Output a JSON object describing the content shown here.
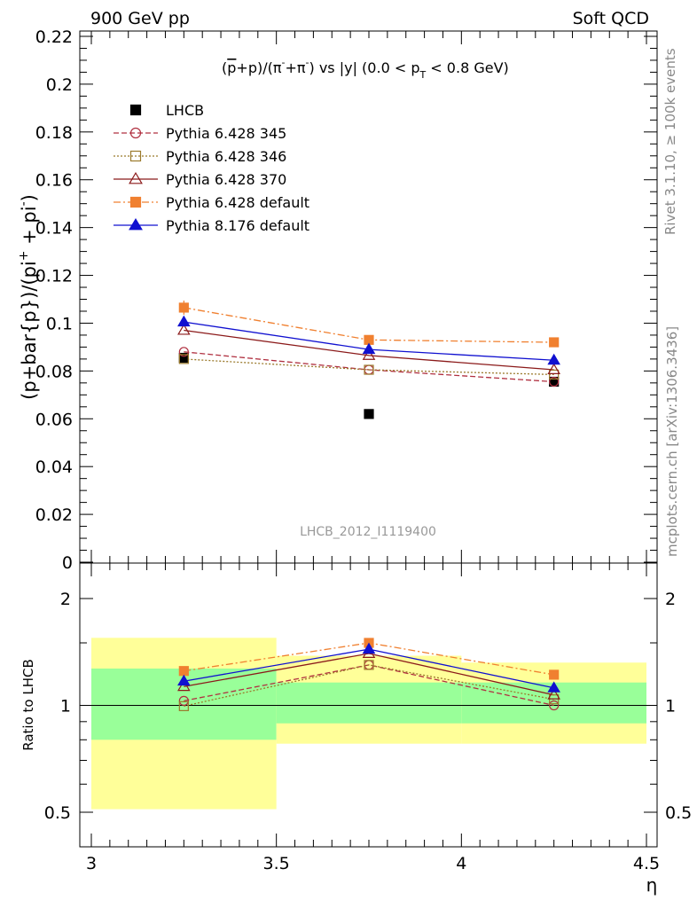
{
  "header": {
    "left": "900 GeV pp",
    "right": "Soft QCD"
  },
  "side_text": {
    "rivet": "Rivet 3.1.10, ≥ 100k events",
    "mcplots": "mcplots.cern.ch [arXiv:1306.3436]"
  },
  "chart_data": [
    {
      "type": "line",
      "title": "(p̅+p)/(π⁻+π⁺) vs |y| (0.0 < pT < 0.8 GeV)",
      "title_parts": {
        "a": "(",
        "pbar": "p",
        "b": "+p)/(π",
        "sup1": "-",
        "c": "+π",
        "sup2": "-",
        "d": ") vs |y| (0.0 < p",
        "sub": "T",
        "e": " < 0.8 GeV)"
      },
      "ylabel": "(p+bar{p})/(pi⁺ + pi⁻)",
      "ylabel_parts": {
        "main": "(p+bar{p})/(pi",
        "sup": "+",
        "tail": " + pi",
        "sup2": "-",
        "end": ")"
      },
      "watermark": "LHCB_2012_I1119400",
      "xlim": [
        3,
        4.5
      ],
      "ylim": [
        0,
        0.225
      ],
      "y_ticks": [
        "0",
        "0.02",
        "0.04",
        "0.06",
        "0.08",
        "0.1",
        "0.12",
        "0.14",
        "0.16",
        "0.18",
        "0.2",
        "0.22"
      ],
      "legend_position": "top-left",
      "x": [
        3.25,
        3.75,
        4.25
      ],
      "series": [
        {
          "name": "LHCB",
          "color": "#000000",
          "marker": "filled-square",
          "line": "none",
          "values": [
            0.0855,
            0.062,
            0.0755
          ]
        },
        {
          "name": "Pythia 6.428 345",
          "color": "#b03040",
          "marker": "open-circle",
          "line": "dashed",
          "values": [
            0.088,
            0.0805,
            0.0755
          ]
        },
        {
          "name": "Pythia 6.428 346",
          "color": "#9b7a2c",
          "marker": "open-square",
          "line": "dotted",
          "values": [
            0.085,
            0.0805,
            0.0785
          ]
        },
        {
          "name": "Pythia 6.428 370",
          "color": "#8b1a1a",
          "marker": "open-triangle",
          "line": "solid",
          "values": [
            0.097,
            0.0865,
            0.0805
          ]
        },
        {
          "name": "Pythia 6.428 default",
          "color": "#f08030",
          "marker": "filled-square",
          "line": "dashdot",
          "values": [
            0.1065,
            0.093,
            0.092
          ]
        },
        {
          "name": "Pythia 8.176 default",
          "color": "#1010d0",
          "marker": "filled-triangle",
          "line": "solid",
          "values": [
            0.1005,
            0.089,
            0.0845
          ]
        }
      ]
    },
    {
      "type": "line",
      "ylabel": "Ratio to LHCB",
      "xlabel": "η",
      "xlim": [
        3,
        4.5
      ],
      "ylim": [
        0.42,
        2.3
      ],
      "y_scale": "log",
      "x_ticks": [
        "3",
        "3.5",
        "4",
        "4.5"
      ],
      "y_ticks": [
        "0.5",
        "1",
        "2"
      ],
      "x": [
        3.25,
        3.75,
        4.25
      ],
      "bands": [
        {
          "x_range": [
            3,
            3.5
          ],
          "green": [
            0.8,
            1.27
          ],
          "yellow": [
            0.51,
            1.55
          ]
        },
        {
          "x_range": [
            3.5,
            4.0
          ],
          "green": [
            0.89,
            1.16
          ],
          "yellow": [
            0.78,
            1.38
          ]
        },
        {
          "x_range": [
            4.0,
            4.5
          ],
          "green": [
            0.89,
            1.16
          ],
          "yellow": [
            0.78,
            1.32
          ]
        }
      ],
      "series": [
        {
          "name": "Pythia 6.428 345",
          "values": [
            1.03,
            1.3,
            1.0
          ]
        },
        {
          "name": "Pythia 6.428 346",
          "values": [
            0.995,
            1.3,
            1.04
          ]
        },
        {
          "name": "Pythia 6.428 370",
          "values": [
            1.13,
            1.4,
            1.07
          ]
        },
        {
          "name": "Pythia 6.428 default",
          "values": [
            1.25,
            1.5,
            1.22
          ]
        },
        {
          "name": "Pythia 8.176 default",
          "values": [
            1.17,
            1.44,
            1.12
          ]
        }
      ]
    }
  ]
}
